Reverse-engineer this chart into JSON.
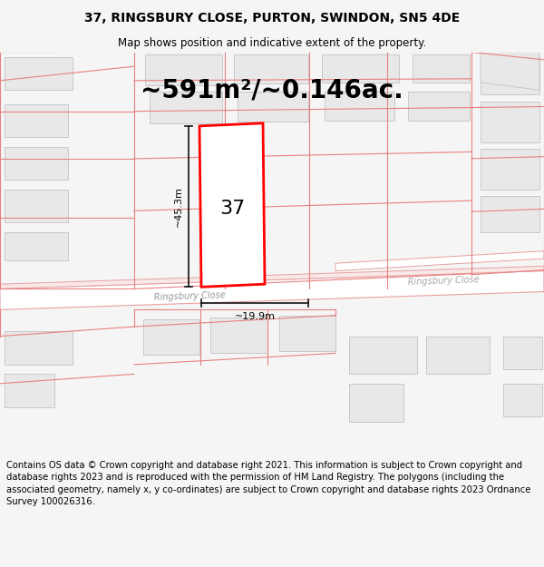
{
  "title_line1": "37, RINGSBURY CLOSE, PURTON, SWINDON, SN5 4DE",
  "title_line2": "Map shows position and indicative extent of the property.",
  "area_text": "~591m²/~0.146ac.",
  "number_label": "37",
  "dim_height": "~45.3m",
  "dim_width": "~19.9m",
  "road_label1": "Ringsbury Close",
  "road_label2": "Ringsbury Close",
  "footer_text": "Contains OS data © Crown copyright and database right 2021. This information is subject to Crown copyright and database rights 2023 and is reproduced with the permission of HM Land Registry. The polygons (including the associated geometry, namely x, y co-ordinates) are subject to Crown copyright and database rights 2023 Ordnance Survey 100026316.",
  "bg_color": "#f5f5f5",
  "map_bg": "#ffffff",
  "building_fill": "#e8e8e8",
  "building_outline": "#c8c8c8",
  "plot_ec": "#e88080",
  "road_ec": "#e8a0a0",
  "dim_color": "#111111",
  "title_fontsize": 10,
  "subtitle_fontsize": 8.5,
  "area_fontsize": 20,
  "number_fontsize": 16,
  "dim_fontsize": 8,
  "road_fontsize": 7,
  "footer_fontsize": 7.2
}
